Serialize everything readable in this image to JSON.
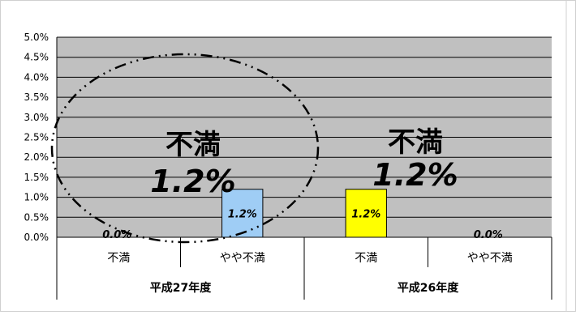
{
  "chart_data": {
    "type": "bar",
    "ylim": [
      0,
      5
    ],
    "y_ticks": [
      "0.0%",
      "0.5%",
      "1.0%",
      "1.5%",
      "2.0%",
      "2.5%",
      "3.0%",
      "3.5%",
      "4.0%",
      "4.5%",
      "5.0%"
    ],
    "groups": [
      {
        "label": "平成27年度",
        "bars": [
          {
            "category": "不満",
            "value": 0.0,
            "label": "0.0%",
            "color": "#bdbdbd"
          },
          {
            "category": "やや不満",
            "value": 1.2,
            "label": "1.2%",
            "color": "#9fcdf5"
          }
        ]
      },
      {
        "label": "平成26年度",
        "bars": [
          {
            "category": "不満",
            "value": 1.2,
            "label": "1.2%",
            "color": "#ffff00"
          },
          {
            "category": "やや不満",
            "value": 0.0,
            "label": "0.0%",
            "color": "#bdbdbd"
          }
        ]
      }
    ],
    "annotations": [
      {
        "title": "不満",
        "value": "1.2%"
      },
      {
        "title": "不満",
        "value": "1.2%"
      }
    ],
    "grid": true,
    "plot_background": "#c0c0c0"
  }
}
